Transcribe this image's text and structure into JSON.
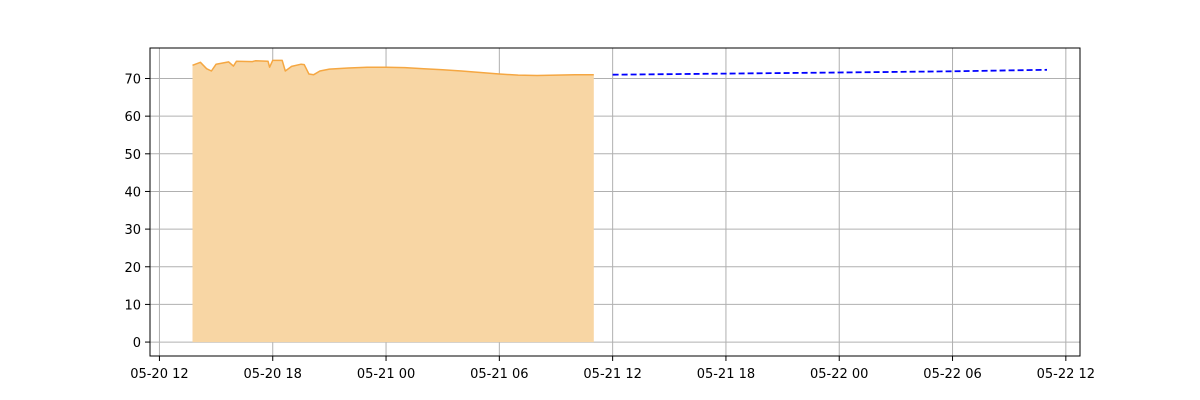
{
  "chart_data": {
    "type": "area",
    "title": "",
    "xlabel": "",
    "ylabel": "",
    "x_axis": {
      "type": "datetime",
      "range": [
        "2020-05-20T11:30",
        "2020-05-22T12:45"
      ],
      "ticks": [
        {
          "value": "2020-05-20T12:00",
          "label": "05-20 12"
        },
        {
          "value": "2020-05-20T18:00",
          "label": "05-20 18"
        },
        {
          "value": "2020-05-21T00:00",
          "label": "05-21 00"
        },
        {
          "value": "2020-05-21T06:00",
          "label": "05-21 06"
        },
        {
          "value": "2020-05-21T12:00",
          "label": "05-21 12"
        },
        {
          "value": "2020-05-21T18:00",
          "label": "05-21 18"
        },
        {
          "value": "2020-05-22T00:00",
          "label": "05-22 00"
        },
        {
          "value": "2020-05-22T06:00",
          "label": "05-22 06"
        },
        {
          "value": "2020-05-22T12:00",
          "label": "05-22 12"
        }
      ]
    },
    "y_axis": {
      "range": [
        -3.7,
        78.1
      ],
      "ticks": [
        0,
        10,
        20,
        30,
        40,
        50,
        60,
        70
      ]
    },
    "grid": true,
    "legend": "none",
    "series": [
      {
        "style": "filled-area",
        "line_color": "#f5a742",
        "fill_color": "#f8d6a4",
        "points": [
          [
            "2020-05-20T13:45",
            73.5
          ],
          [
            "2020-05-20T14:10",
            74.3
          ],
          [
            "2020-05-20T14:30",
            72.6
          ],
          [
            "2020-05-20T14:45",
            72.0
          ],
          [
            "2020-05-20T15:00",
            73.8
          ],
          [
            "2020-05-20T15:40",
            74.4
          ],
          [
            "2020-05-20T15:55",
            73.3
          ],
          [
            "2020-05-20T16:05",
            74.6
          ],
          [
            "2020-05-20T16:55",
            74.5
          ],
          [
            "2020-05-20T17:05",
            74.7
          ],
          [
            "2020-05-20T17:45",
            74.6
          ],
          [
            "2020-05-20T17:50",
            73.0
          ],
          [
            "2020-05-20T18:00",
            74.8
          ],
          [
            "2020-05-20T18:30",
            74.8
          ],
          [
            "2020-05-20T18:40",
            72.0
          ],
          [
            "2020-05-20T19:00",
            73.2
          ],
          [
            "2020-05-20T19:30",
            73.8
          ],
          [
            "2020-05-20T19:40",
            73.7
          ],
          [
            "2020-05-20T19:55",
            71.2
          ],
          [
            "2020-05-20T20:10",
            71.0
          ],
          [
            "2020-05-20T20:30",
            72.0
          ],
          [
            "2020-05-20T21:00",
            72.5
          ],
          [
            "2020-05-20T22:00",
            72.8
          ],
          [
            "2020-05-20T23:00",
            73.0
          ],
          [
            "2020-05-21T00:00",
            73.0
          ],
          [
            "2020-05-21T01:00",
            72.9
          ],
          [
            "2020-05-21T02:00",
            72.6
          ],
          [
            "2020-05-21T03:00",
            72.3
          ],
          [
            "2020-05-21T04:00",
            72.0
          ],
          [
            "2020-05-21T05:00",
            71.6
          ],
          [
            "2020-05-21T06:00",
            71.2
          ],
          [
            "2020-05-21T07:00",
            70.9
          ],
          [
            "2020-05-21T08:00",
            70.8
          ],
          [
            "2020-05-21T09:00",
            70.9
          ],
          [
            "2020-05-21T10:00",
            71.0
          ],
          [
            "2020-05-21T11:00",
            71.0
          ]
        ]
      },
      {
        "style": "dashed-line",
        "line_color": "#0000ff",
        "points": [
          [
            "2020-05-21T12:00",
            71.0
          ],
          [
            "2020-05-21T18:00",
            71.3
          ],
          [
            "2020-05-22T00:00",
            71.6
          ],
          [
            "2020-05-22T06:00",
            71.9
          ],
          [
            "2020-05-22T11:00",
            72.3
          ]
        ]
      }
    ]
  }
}
